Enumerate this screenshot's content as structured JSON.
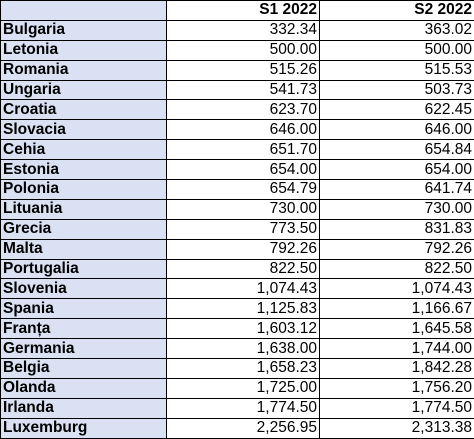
{
  "header": {
    "country": "",
    "s1": "S1 2022",
    "s2": "S2 2022"
  },
  "rows": [
    {
      "country": "Bulgaria",
      "s1": "332.34",
      "s2": "363.02"
    },
    {
      "country": "Letonia",
      "s1": "500.00",
      "s2": "500.00"
    },
    {
      "country": "Romania",
      "s1": "515.26",
      "s2": "515.53"
    },
    {
      "country": "Ungaria",
      "s1": "541.73",
      "s2": "503.73"
    },
    {
      "country": "Croatia",
      "s1": "623.70",
      "s2": "622.45"
    },
    {
      "country": "Slovacia",
      "s1": "646.00",
      "s2": "646.00"
    },
    {
      "country": "Cehia",
      "s1": "651.70",
      "s2": "654.84"
    },
    {
      "country": "Estonia",
      "s1": "654.00",
      "s2": "654.00"
    },
    {
      "country": "Polonia",
      "s1": "654.79",
      "s2": "641.74"
    },
    {
      "country": "Lituania",
      "s1": "730.00",
      "s2": "730.00"
    },
    {
      "country": "Grecia",
      "s1": "773.50",
      "s2": "831.83"
    },
    {
      "country": "Malta",
      "s1": "792.26",
      "s2": "792.26"
    },
    {
      "country": "Portugalia",
      "s1": "822.50",
      "s2": "822.50"
    },
    {
      "country": "Slovenia",
      "s1": "1,074.43",
      "s2": "1,074.43"
    },
    {
      "country": "Spania",
      "s1": "1,125.83",
      "s2": "1,166.67"
    },
    {
      "country": "Franța",
      "s1": "1,603.12",
      "s2": "1,645.58"
    },
    {
      "country": "Germania",
      "s1": "1,638.00",
      "s2": "1,744.00"
    },
    {
      "country": "Belgia",
      "s1": "1,658.23",
      "s2": "1,842.28"
    },
    {
      "country": "Olanda",
      "s1": "1,725.00",
      "s2": "1,756.20"
    },
    {
      "country": "Irlanda",
      "s1": "1,774.50",
      "s2": "1,774.50"
    },
    {
      "country": "Luxemburg",
      "s1": "2,256.95",
      "s2": "2,313.38"
    }
  ],
  "colors": {
    "country_fill": "#d9e1f2",
    "grid": "#000000",
    "background": "#ffffff"
  }
}
